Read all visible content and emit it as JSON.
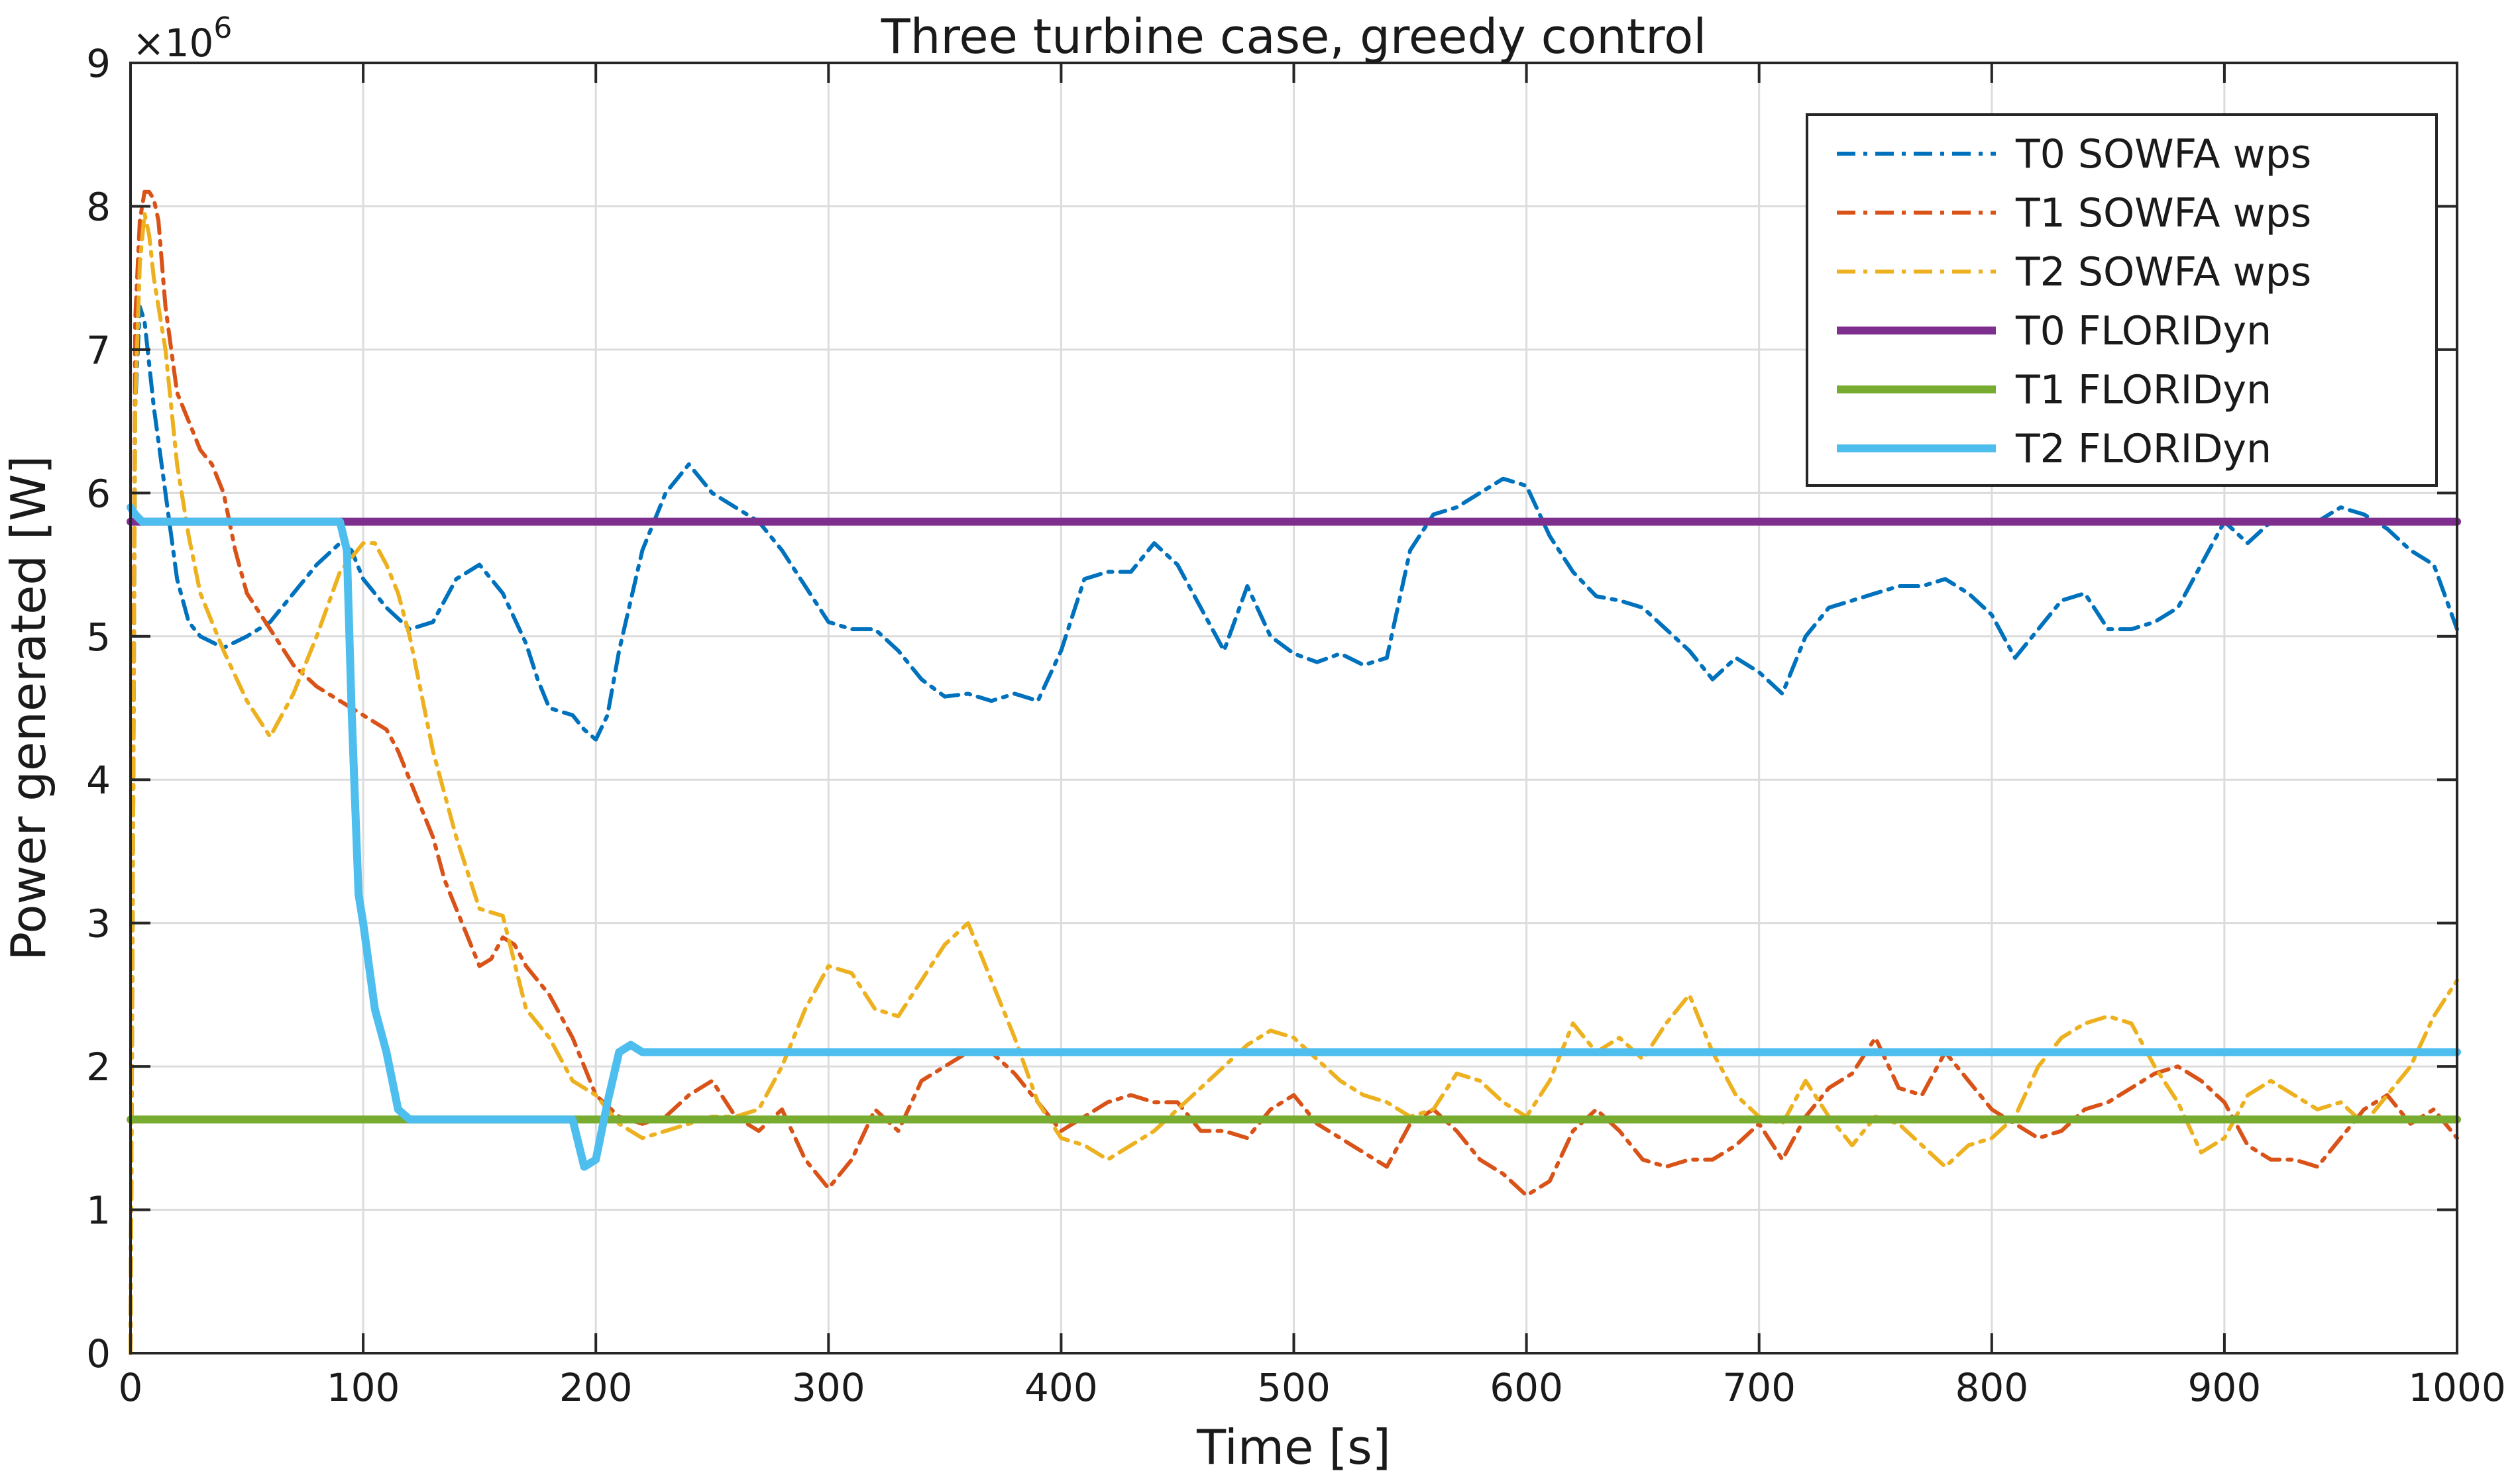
{
  "chart_data": {
    "type": "line",
    "title": "Three turbine case, greedy control",
    "xlabel": "Time [s]",
    "ylabel": "Power generated [W]",
    "y_exponent_label": "×10",
    "y_exponent_power": "6",
    "xlim": [
      0,
      1000
    ],
    "ylim": [
      0,
      9
    ],
    "y_scale_factor": 1000000,
    "xticks": [
      0,
      100,
      200,
      300,
      400,
      500,
      600,
      700,
      800,
      900,
      1000
    ],
    "yticks": [
      0,
      1,
      2,
      3,
      4,
      5,
      6,
      7,
      8,
      9
    ],
    "grid": true,
    "legend_position": "top-right",
    "series": [
      {
        "name": "T0 SOWFA wps",
        "color": "#0072BD",
        "style": "dashdot",
        "x": [
          0,
          2,
          4,
          6,
          10,
          15,
          20,
          25,
          30,
          40,
          50,
          60,
          70,
          80,
          90,
          95,
          100,
          110,
          120,
          130,
          140,
          150,
          160,
          170,
          175,
          180,
          190,
          195,
          200,
          205,
          210,
          220,
          230,
          240,
          250,
          260,
          270,
          280,
          290,
          300,
          310,
          320,
          330,
          340,
          350,
          360,
          370,
          380,
          390,
          400,
          410,
          420,
          430,
          440,
          450,
          460,
          470,
          480,
          490,
          500,
          510,
          520,
          530,
          540,
          550,
          560,
          570,
          580,
          590,
          600,
          610,
          620,
          630,
          640,
          650,
          660,
          670,
          680,
          690,
          700,
          710,
          720,
          730,
          740,
          750,
          760,
          770,
          780,
          790,
          800,
          810,
          820,
          830,
          840,
          850,
          860,
          870,
          880,
          890,
          900,
          910,
          920,
          930,
          940,
          950,
          960,
          970,
          980,
          990,
          1000
        ],
        "values": [
          0,
          6.6,
          7.3,
          7.2,
          6.6,
          6.0,
          5.4,
          5.1,
          5.0,
          4.92,
          5.0,
          5.1,
          5.3,
          5.5,
          5.65,
          5.6,
          5.4,
          5.2,
          5.05,
          5.1,
          5.4,
          5.5,
          5.3,
          4.95,
          4.7,
          4.5,
          4.45,
          4.35,
          4.28,
          4.45,
          4.9,
          5.6,
          6.0,
          6.2,
          6.0,
          5.9,
          5.8,
          5.6,
          5.35,
          5.1,
          5.05,
          5.05,
          4.9,
          4.7,
          4.58,
          4.6,
          4.55,
          4.6,
          4.55,
          4.9,
          5.4,
          5.45,
          5.45,
          5.65,
          5.5,
          5.2,
          4.9,
          5.35,
          5.0,
          4.88,
          4.82,
          4.88,
          4.8,
          4.85,
          5.6,
          5.85,
          5.9,
          6.0,
          6.1,
          6.05,
          5.7,
          5.45,
          5.28,
          5.25,
          5.2,
          5.05,
          4.9,
          4.7,
          4.85,
          4.75,
          4.6,
          5.0,
          5.2,
          5.25,
          5.3,
          5.35,
          5.35,
          5.4,
          5.3,
          5.15,
          4.85,
          5.05,
          5.25,
          5.3,
          5.05,
          5.05,
          5.1,
          5.2,
          5.5,
          5.8,
          5.65,
          5.8,
          5.8,
          5.8,
          5.9,
          5.85,
          5.75,
          5.6,
          5.5,
          5.05
        ]
      },
      {
        "name": "T1 SOWFA wps",
        "color": "#D95319",
        "style": "dashdot",
        "x": [
          0,
          2,
          4,
          6,
          8,
          10,
          12,
          15,
          20,
          25,
          30,
          35,
          40,
          45,
          50,
          60,
          70,
          80,
          90,
          100,
          110,
          115,
          120,
          125,
          130,
          135,
          140,
          145,
          150,
          155,
          160,
          165,
          170,
          180,
          190,
          200,
          210,
          220,
          230,
          240,
          250,
          260,
          270,
          280,
          290,
          300,
          310,
          320,
          330,
          340,
          350,
          360,
          370,
          380,
          390,
          400,
          410,
          420,
          430,
          440,
          450,
          460,
          470,
          480,
          490,
          500,
          510,
          520,
          530,
          540,
          550,
          560,
          570,
          580,
          590,
          600,
          610,
          620,
          630,
          640,
          650,
          660,
          670,
          680,
          690,
          700,
          710,
          720,
          730,
          740,
          750,
          760,
          770,
          780,
          790,
          800,
          810,
          820,
          830,
          840,
          850,
          860,
          870,
          880,
          890,
          900,
          910,
          920,
          930,
          940,
          950,
          960,
          970,
          980,
          990,
          1000
        ],
        "values": [
          0,
          7.2,
          7.9,
          8.1,
          8.1,
          8.05,
          7.9,
          7.3,
          6.7,
          6.5,
          6.3,
          6.2,
          6.0,
          5.6,
          5.3,
          5.05,
          4.8,
          4.65,
          4.55,
          4.45,
          4.35,
          4.2,
          4.0,
          3.8,
          3.6,
          3.3,
          3.1,
          2.9,
          2.7,
          2.75,
          2.9,
          2.85,
          2.7,
          2.5,
          2.2,
          1.8,
          1.65,
          1.6,
          1.65,
          1.8,
          1.9,
          1.65,
          1.55,
          1.7,
          1.35,
          1.15,
          1.35,
          1.7,
          1.55,
          1.9,
          2.0,
          2.1,
          2.1,
          1.95,
          1.75,
          1.55,
          1.65,
          1.75,
          1.8,
          1.75,
          1.75,
          1.55,
          1.55,
          1.5,
          1.7,
          1.8,
          1.6,
          1.5,
          1.4,
          1.3,
          1.6,
          1.7,
          1.55,
          1.35,
          1.25,
          1.1,
          1.2,
          1.55,
          1.7,
          1.55,
          1.35,
          1.3,
          1.35,
          1.35,
          1.45,
          1.6,
          1.35,
          1.65,
          1.85,
          1.95,
          2.2,
          1.85,
          1.8,
          2.1,
          1.9,
          1.7,
          1.6,
          1.5,
          1.55,
          1.7,
          1.75,
          1.85,
          1.95,
          2.0,
          1.9,
          1.75,
          1.45,
          1.35,
          1.35,
          1.3,
          1.5,
          1.7,
          1.8,
          1.6,
          1.7,
          1.5
        ]
      },
      {
        "name": "T2 SOWFA wps",
        "color": "#EDB120",
        "style": "dashdot",
        "x": [
          0,
          2,
          4,
          6,
          8,
          10,
          15,
          20,
          25,
          30,
          40,
          50,
          60,
          70,
          80,
          90,
          100,
          105,
          110,
          115,
          120,
          125,
          130,
          140,
          150,
          160,
          170,
          180,
          190,
          200,
          210,
          220,
          230,
          240,
          250,
          260,
          270,
          280,
          290,
          300,
          310,
          320,
          330,
          340,
          350,
          360,
          370,
          380,
          390,
          400,
          410,
          420,
          430,
          440,
          450,
          460,
          470,
          480,
          490,
          500,
          510,
          520,
          530,
          540,
          550,
          560,
          570,
          580,
          590,
          600,
          610,
          620,
          630,
          640,
          650,
          660,
          670,
          680,
          690,
          700,
          710,
          720,
          730,
          740,
          750,
          760,
          770,
          780,
          790,
          800,
          810,
          820,
          830,
          840,
          850,
          860,
          870,
          880,
          890,
          900,
          910,
          920,
          930,
          940,
          950,
          960,
          970,
          980,
          990,
          1000
        ],
        "values": [
          0,
          6.6,
          7.6,
          7.95,
          7.8,
          7.5,
          7.0,
          6.2,
          5.7,
          5.3,
          4.9,
          4.55,
          4.3,
          4.6,
          5.0,
          5.45,
          5.65,
          5.65,
          5.5,
          5.3,
          5.0,
          4.6,
          4.2,
          3.6,
          3.1,
          3.05,
          2.4,
          2.2,
          1.9,
          1.8,
          1.6,
          1.5,
          1.55,
          1.6,
          1.65,
          1.65,
          1.7,
          2.0,
          2.4,
          2.7,
          2.65,
          2.4,
          2.35,
          2.6,
          2.85,
          3.0,
          2.6,
          2.2,
          1.75,
          1.5,
          1.45,
          1.35,
          1.45,
          1.55,
          1.7,
          1.85,
          2.0,
          2.15,
          2.25,
          2.2,
          2.05,
          1.9,
          1.8,
          1.75,
          1.65,
          1.7,
          1.95,
          1.9,
          1.75,
          1.65,
          1.9,
          2.3,
          2.1,
          2.2,
          2.05,
          2.3,
          2.5,
          2.1,
          1.8,
          1.65,
          1.6,
          1.9,
          1.65,
          1.45,
          1.65,
          1.6,
          1.45,
          1.3,
          1.45,
          1.5,
          1.65,
          2.0,
          2.2,
          2.3,
          2.35,
          2.3,
          2.0,
          1.75,
          1.4,
          1.5,
          1.8,
          1.9,
          1.8,
          1.7,
          1.75,
          1.6,
          1.8,
          2.0,
          2.35,
          2.6
        ]
      },
      {
        "name": "T0 FLORIDyn",
        "color": "#7E2F8E",
        "style": "solid",
        "x": [
          0,
          1000
        ],
        "values": [
          5.8,
          5.8
        ]
      },
      {
        "name": "T1 FLORIDyn",
        "color": "#77AC30",
        "style": "solid",
        "x": [
          0,
          1000
        ],
        "values": [
          1.63,
          1.63
        ]
      },
      {
        "name": "T2 FLORIDyn",
        "color": "#4DBEEE",
        "style": "solid",
        "x": [
          0,
          2,
          5,
          90,
          93,
          95,
          98,
          100,
          105,
          110,
          115,
          120,
          190,
          195,
          200,
          205,
          210,
          215,
          220,
          1000
        ],
        "values": [
          5.9,
          5.85,
          5.8,
          5.8,
          5.6,
          4.5,
          3.2,
          3.0,
          2.4,
          2.1,
          1.7,
          1.63,
          1.63,
          1.3,
          1.35,
          1.75,
          2.1,
          2.15,
          2.1,
          2.1
        ]
      }
    ]
  }
}
